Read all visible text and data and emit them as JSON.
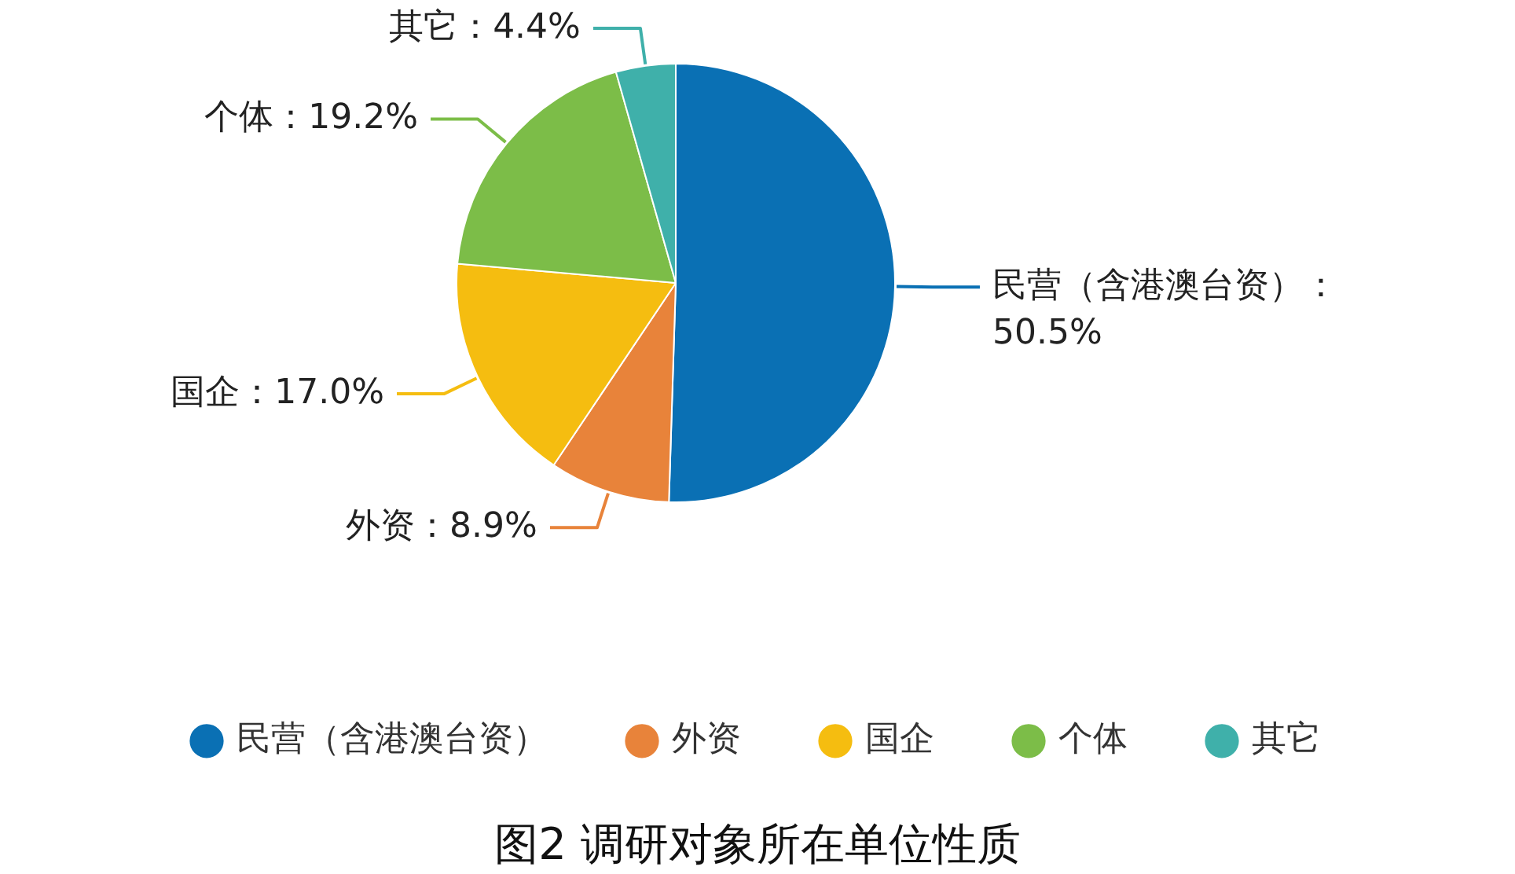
{
  "chart_data": {
    "type": "pie",
    "title": "图2 调研对象所在单位性质",
    "categories": [
      "民营（含港澳台资）",
      "外资",
      "国企",
      "个体",
      "其它"
    ],
    "values": [
      50.5,
      8.9,
      17.0,
      19.2,
      4.4
    ],
    "colors": [
      "#0a70b4",
      "#e8833a",
      "#f5bd10",
      "#7cbd48",
      "#3fb0aa"
    ],
    "value_labels": [
      "民营（含港澳台资）：50.5%",
      "外资：8.9%",
      "国企：17.0%",
      "个体：19.2%",
      "其它：4.4%"
    ],
    "legend": "bottom"
  }
}
